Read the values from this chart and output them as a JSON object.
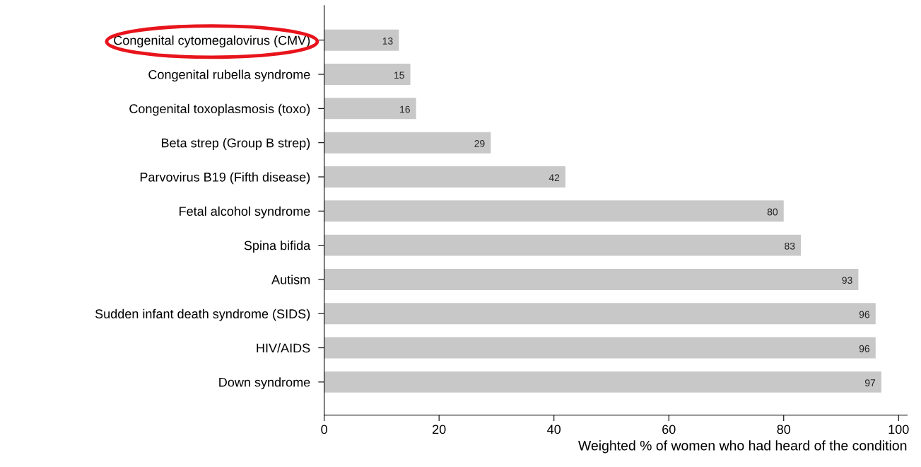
{
  "chart_data": {
    "type": "bar",
    "orientation": "horizontal",
    "xlabel": "Weighted % of women who had heard of the condition",
    "categories": [
      "Congenital cytomegalovirus (CMV)",
      "Congenital rubella syndrome",
      "Congenital toxoplasmosis (toxo)",
      "Beta strep (Group B strep)",
      "Parvovirus B19 (Fifth disease)",
      "Fetal alcohol syndrome",
      "Spina bifida",
      "Autism",
      "Sudden infant death syndrome (SIDS)",
      "HIV/AIDS",
      "Down syndrome"
    ],
    "values": [
      13,
      15,
      16,
      29,
      42,
      80,
      83,
      93,
      96,
      96,
      97
    ],
    "color": "#c8c8c8",
    "data_labels": true,
    "grid": false,
    "legend": false,
    "xlim": [
      0,
      101.5
    ],
    "xticks": [
      0,
      20,
      40,
      60,
      80,
      100
    ]
  }
}
